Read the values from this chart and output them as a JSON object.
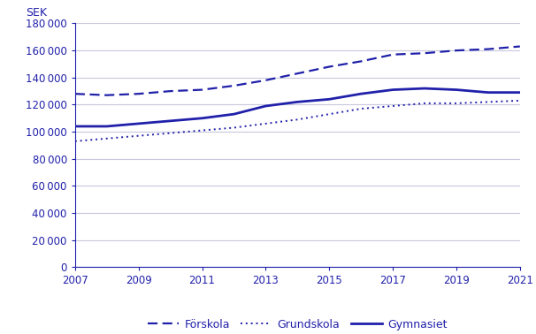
{
  "years": [
    2007,
    2008,
    2009,
    2010,
    2011,
    2012,
    2013,
    2014,
    2015,
    2016,
    2017,
    2018,
    2019,
    2020,
    2021
  ],
  "forskola": [
    128000,
    127000,
    128000,
    130000,
    131000,
    134000,
    138000,
    143000,
    148000,
    152000,
    157000,
    158000,
    160000,
    161000,
    163000
  ],
  "grundskola": [
    93000,
    95000,
    97000,
    99000,
    101000,
    103000,
    106000,
    109000,
    113000,
    117000,
    119000,
    121000,
    121000,
    122000,
    123000
  ],
  "gymnasiet": [
    104000,
    104000,
    106000,
    108000,
    110000,
    113000,
    119000,
    122000,
    124000,
    128000,
    131000,
    132000,
    131000,
    129000,
    129000
  ],
  "color": "#2020aa",
  "ylim": [
    0,
    180000
  ],
  "yticks": [
    0,
    20000,
    40000,
    60000,
    80000,
    100000,
    120000,
    140000,
    160000,
    180000
  ],
  "xticks": [
    2007,
    2009,
    2011,
    2013,
    2015,
    2017,
    2019,
    2021
  ],
  "ylabel": "SEK",
  "legend_labels": [
    "Förskola",
    "Grundskola",
    "Gymnasiet"
  ],
  "background_color": "#ffffff",
  "grid_color": "#c8c8dc"
}
